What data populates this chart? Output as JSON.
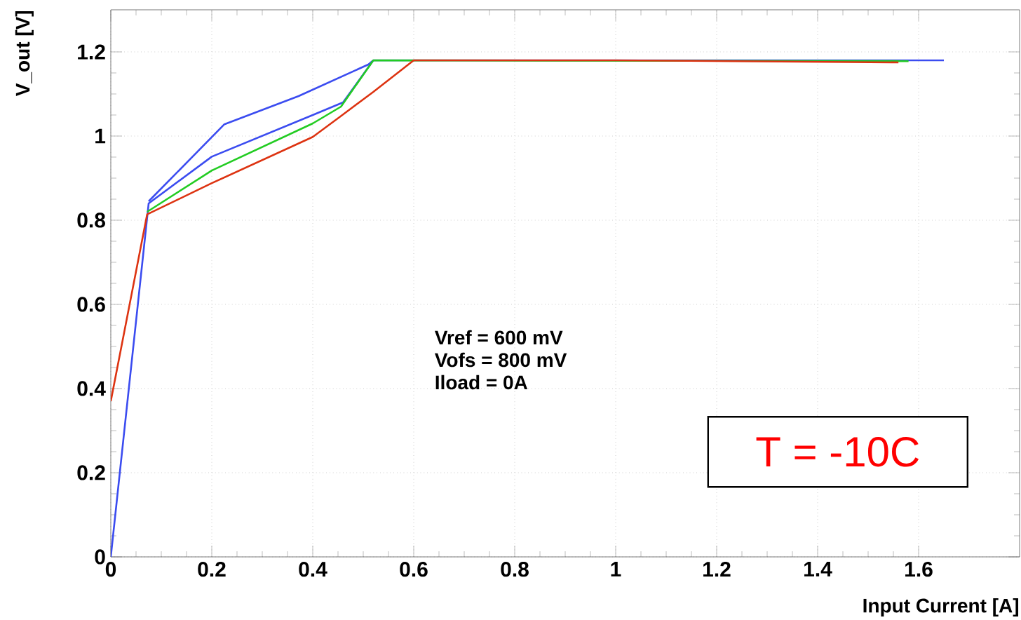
{
  "chart_data": {
    "type": "line",
    "xlabel": "Input Current [A]",
    "ylabel": "V_out [V]",
    "annotations": [
      "Vref = 600 mV",
      "Vofs = 800 mV",
      "Iload = 0A",
      "T = -10C"
    ],
    "xlim": [
      0,
      1.8
    ],
    "ylim": [
      0,
      1.3
    ],
    "xticks": [
      0,
      0.2,
      0.4,
      0.6,
      0.8,
      1,
      1.2,
      1.4,
      1.6
    ],
    "yticks": [
      0,
      0.2,
      0.4,
      0.6,
      0.8,
      1,
      1.2
    ],
    "grid": true,
    "series": [
      {
        "color": "#3b4cf0",
        "x": [
          0.075,
          0.225,
          0.372,
          0.51,
          0.52
        ],
        "values": [
          0.845,
          1.028,
          1.095,
          1.17,
          1.18
        ]
      },
      {
        "color": "#3b4cf0",
        "x": [
          0,
          0.075,
          0.2,
          0.4,
          0.46,
          0.52,
          1.65
        ],
        "values": [
          0,
          0.84,
          0.951,
          1.05,
          1.08,
          1.18,
          1.18
        ]
      },
      {
        "color": "#22cc22",
        "x": [
          0.072,
          0.2,
          0.4,
          0.456,
          0.52,
          1.58
        ],
        "values": [
          0.82,
          0.918,
          1.03,
          1.07,
          1.18,
          1.178
        ]
      },
      {
        "color": "#dd3311",
        "x": [
          0,
          0.072,
          0.2,
          0.4,
          0.453,
          0.52,
          0.6,
          1.0,
          1.56
        ],
        "values": [
          0.37,
          0.814,
          0.888,
          0.998,
          1.045,
          1.105,
          1.18,
          1.18,
          1.175
        ]
      }
    ]
  }
}
